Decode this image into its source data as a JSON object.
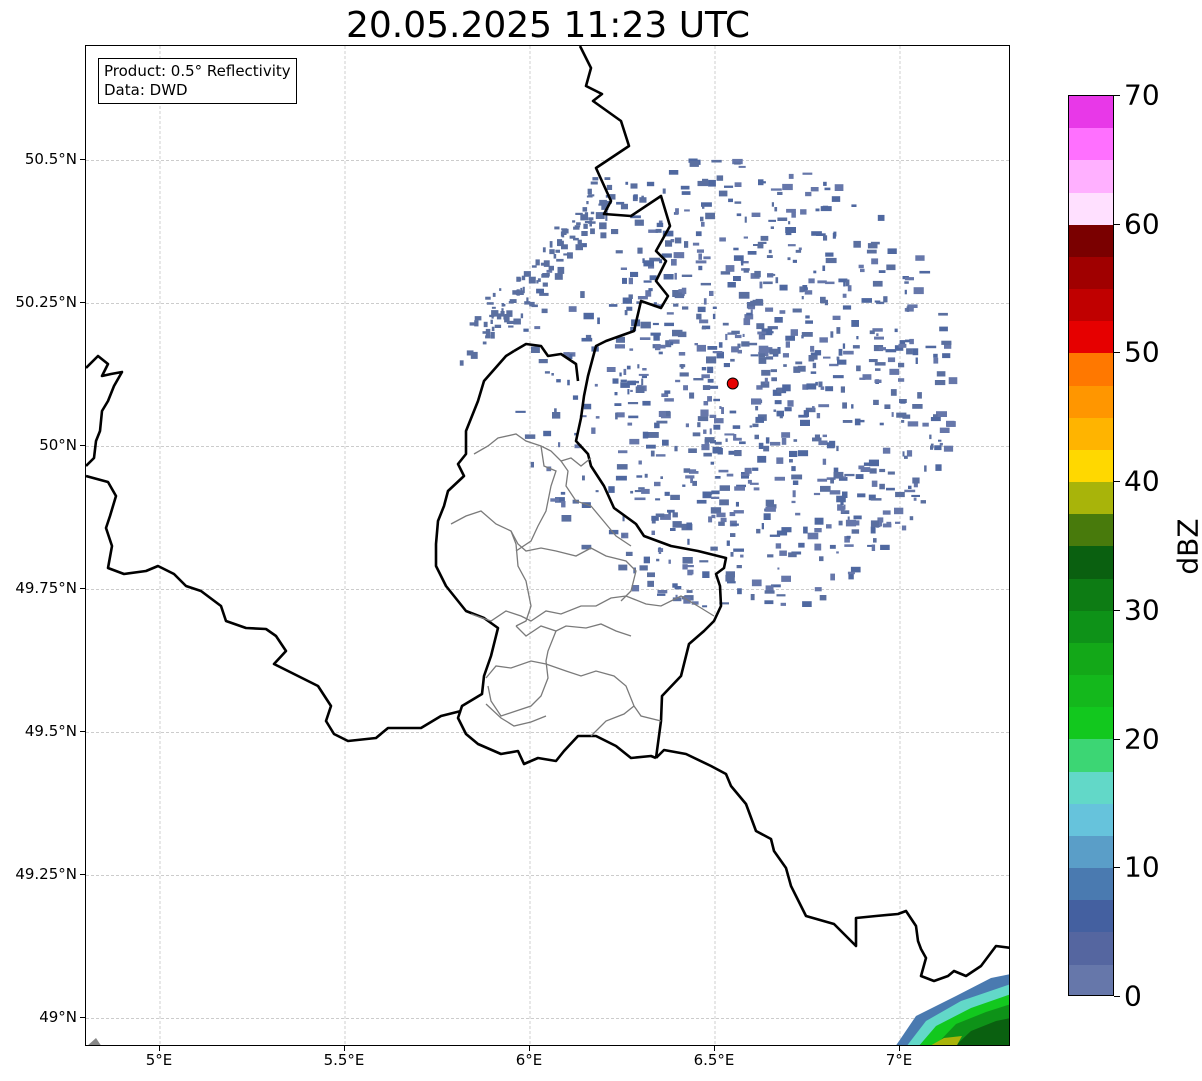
{
  "title": "20.05.2025 11:23 UTC",
  "info_box": {
    "product": "Product: 0.5° Reflectivity",
    "data_source": "Data: DWD"
  },
  "map": {
    "extent": {
      "lon_min": 4.8,
      "lon_max": 7.3,
      "lat_min": 48.95,
      "lat_max": 50.7
    },
    "lat_ticks": [
      {
        "lat": 50.5,
        "label": "50.5°N"
      },
      {
        "lat": 50.25,
        "label": "50.25°N"
      },
      {
        "lat": 50.0,
        "label": "50°N"
      },
      {
        "lat": 49.75,
        "label": "49.75°N"
      },
      {
        "lat": 49.5,
        "label": "49.5°N"
      },
      {
        "lat": 49.25,
        "label": "49.25°N"
      },
      {
        "lat": 49.0,
        "label": "49°N"
      }
    ],
    "lon_ticks": [
      {
        "lon": 5.0,
        "label": "5°E"
      },
      {
        "lon": 5.5,
        "label": "5.5°E"
      },
      {
        "lon": 6.0,
        "label": "6°E"
      },
      {
        "lon": 6.5,
        "label": "6.5°E"
      },
      {
        "lon": 7.0,
        "label": "7°E"
      }
    ],
    "radar_site": {
      "lon": 6.548,
      "lat": 50.11,
      "color": "#e60000"
    },
    "gridlines": true
  },
  "colorbar": {
    "label": "dBZ",
    "vmin": 0,
    "vmax": 70,
    "ticks": [
      0,
      10,
      20,
      30,
      40,
      50,
      60,
      70
    ],
    "colors": [
      "#6677aa",
      "#5566a0",
      "#4460a0",
      "#4a7ab0",
      "#5a9ec8",
      "#66c3dc",
      "#62d8c8",
      "#3cd674",
      "#12c81e",
      "#14b81c",
      "#13a818",
      "#0e9218",
      "#0d7c14",
      "#0a6010",
      "#487a0c",
      "#a8b40a",
      "#ffd800",
      "#ffb400",
      "#ff9600",
      "#ff7800",
      "#e60000",
      "#c00000",
      "#a00000",
      "#7a0000",
      "#ffe0ff",
      "#ffb0ff",
      "#ff70ff",
      "#e838e8"
    ]
  }
}
